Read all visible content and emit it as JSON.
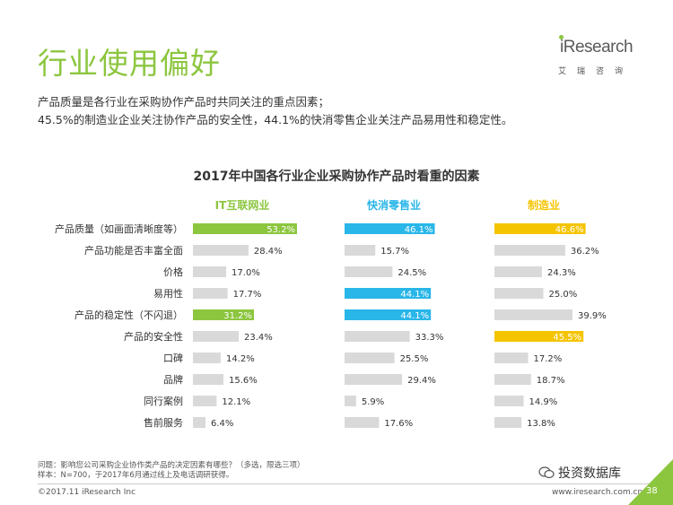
{
  "page": {
    "title": "行业使用偏好",
    "summary_line1": "产品质量是各行业在采购协作产品时共同关注的重点因素；",
    "summary_line2": "45.5%的制造业企业关注协作产品的安全性，44.1%的快消零售企业关注产品易用性和稳定性。"
  },
  "logo": {
    "text": "iResearch",
    "subtitle": "艾瑞咨询"
  },
  "footer": {
    "note_line1": "问题：影响您公司采购企业协作类产品的决定因素有哪些？（多选，限选三项）",
    "note_line2": "样本：N=700，于2017年6月通过线上及电话调研获得。",
    "copyright": "©2017.11 iResearch Inc",
    "url": "www.iresearch.com.cn",
    "page_number": "38",
    "watermark": "投资数据库"
  },
  "colors": {
    "accent_green": "#8cc63f",
    "cyan": "#29b6e8",
    "yellow": "#f5c400",
    "gray_bar": "#d9d9d9"
  },
  "chart_data": {
    "type": "bar",
    "title": "2017年中国各行业企业采购协作产品时看重的因素",
    "categories": [
      "产品质量（如画面清晰度等）",
      "产品功能是否丰富全面",
      "价格",
      "易用性",
      "产品的稳定性（不闪退）",
      "产品的安全性",
      "口碑",
      "品牌",
      "同行案例",
      "售前服务"
    ],
    "series": [
      {
        "name": "IT互联网业",
        "values": [
          53.2,
          28.4,
          17.0,
          17.7,
          31.2,
          23.4,
          14.2,
          15.6,
          12.1,
          6.4
        ],
        "labels": [
          "53.2%",
          "28.4%",
          "17.0%",
          "17.7%",
          "31.2%",
          "23.4%",
          "14.2%",
          "15.6%",
          "12.1%",
          "6.4%"
        ],
        "highlight": [
          true,
          false,
          false,
          false,
          true,
          false,
          false,
          false,
          false,
          false
        ],
        "color": "#8cc63f"
      },
      {
        "name": "快消零售业",
        "values": [
          46.1,
          15.7,
          24.5,
          44.1,
          44.1,
          33.3,
          25.5,
          29.4,
          5.9,
          17.6
        ],
        "labels": [
          "46.1%",
          "15.7%",
          "24.5%",
          "44.1%",
          "44.1%",
          "33.3%",
          "25.5%",
          "29.4%",
          "5.9%",
          "17.6%"
        ],
        "highlight": [
          true,
          false,
          false,
          true,
          true,
          false,
          false,
          false,
          false,
          false
        ],
        "color": "#29b6e8"
      },
      {
        "name": "制造业",
        "values": [
          46.6,
          36.2,
          24.3,
          25.0,
          39.9,
          45.5,
          17.2,
          18.7,
          14.9,
          13.8
        ],
        "labels": [
          "46.6%",
          "36.2%",
          "24.3%",
          "25.0%",
          "39.9%",
          "45.5%",
          "17.2%",
          "18.7%",
          "14.9%",
          "13.8%"
        ],
        "highlight": [
          true,
          false,
          false,
          false,
          false,
          true,
          false,
          false,
          false,
          false
        ],
        "color": "#f5c400"
      }
    ],
    "xlim": [
      0,
      55
    ]
  }
}
